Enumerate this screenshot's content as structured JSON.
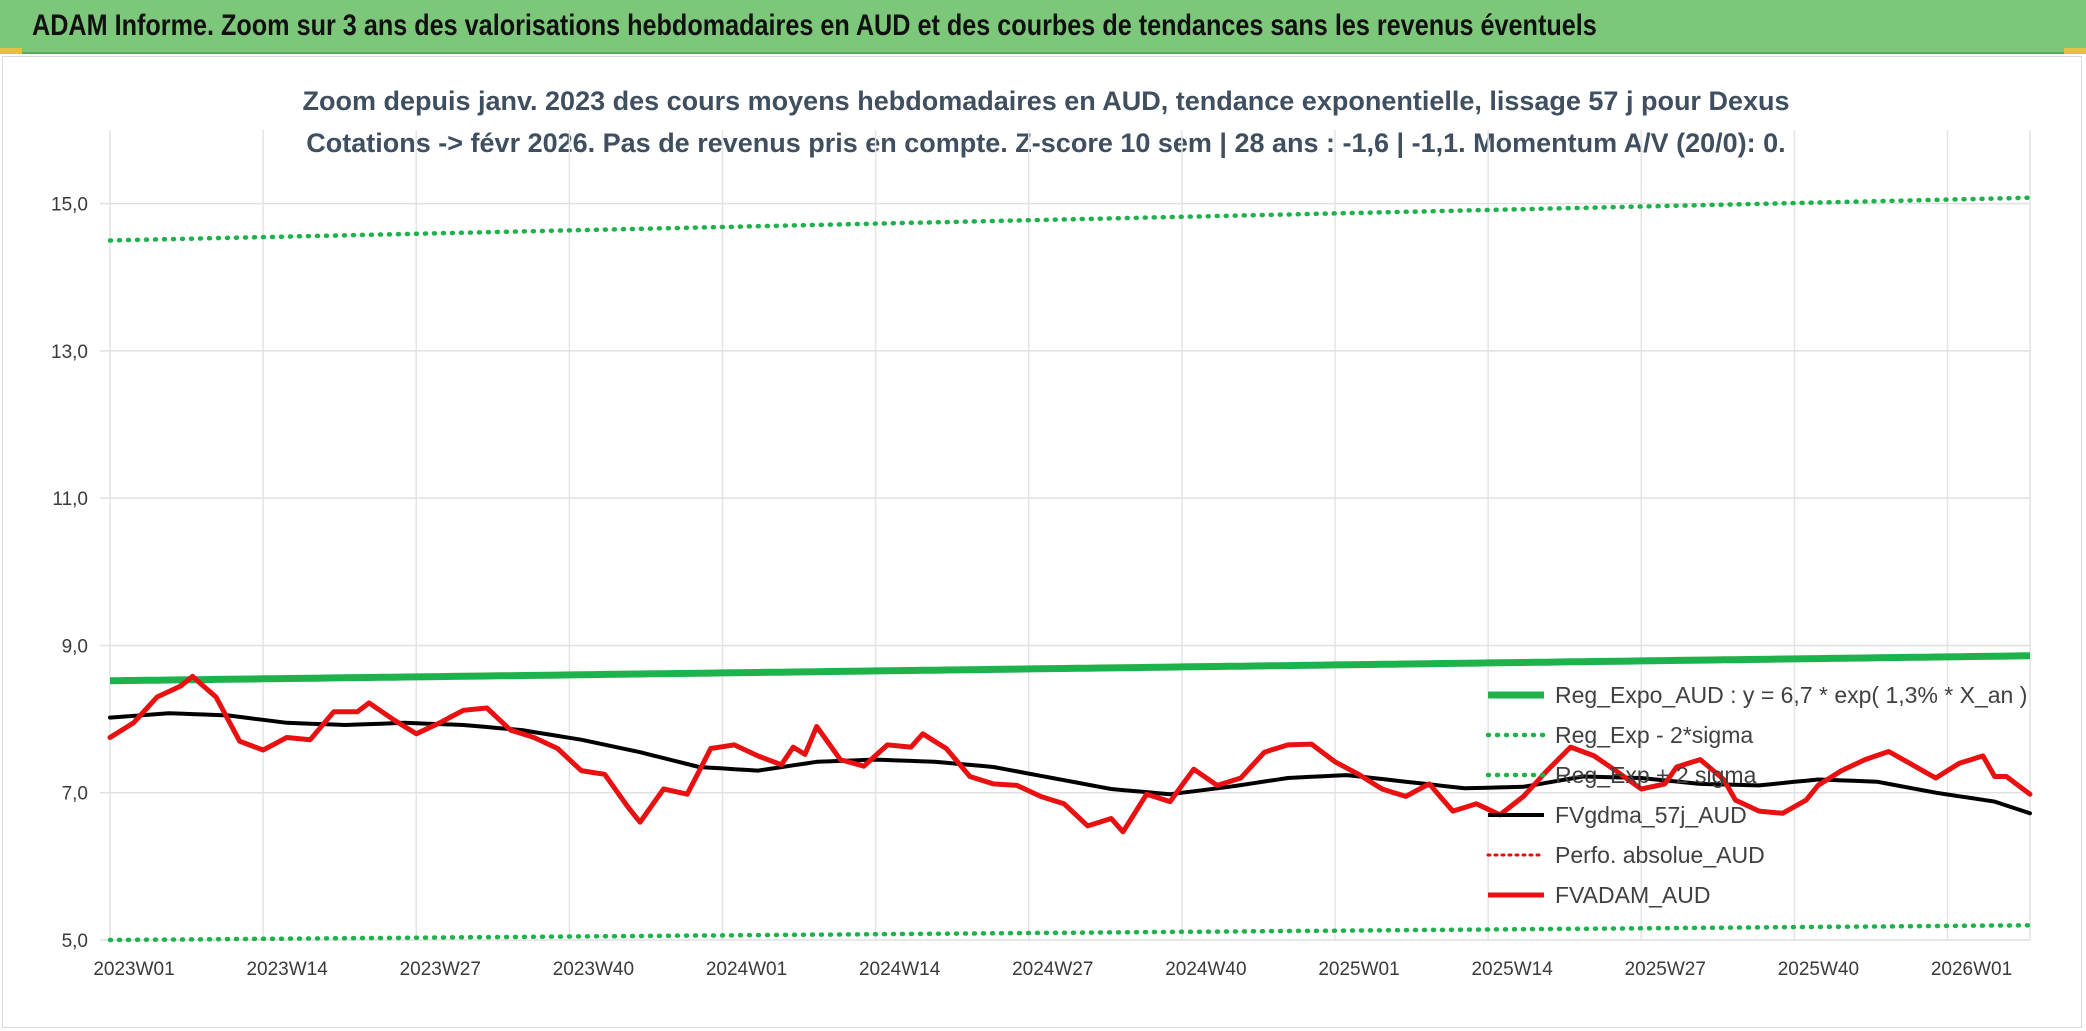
{
  "banner": {
    "title": "ADAM Informe. Zoom sur 3 ans des valorisations hebdomadaires en AUD et des courbes de tendances sans les revenus éventuels"
  },
  "chart_data": {
    "type": "line",
    "title_line1": "Zoom depuis janv. 2023 des cours moyens hebdomadaires en AUD, tendance exponentielle, lissage 57 j pour Dexus",
    "title_line2": "Cotations -> févr 2026. Pas de revenus pris en compte. Z-score 10 sem | 28 ans : -1,6 | -1,1. Momentum A/V (20/0): 0.",
    "x_tick_labels": [
      "2023W01",
      "2023W14",
      "2023W27",
      "2023W40",
      "2024W01",
      "2024W14",
      "2024W27",
      "2024W40",
      "2025W01",
      "2025W14",
      "2025W27",
      "2025W40",
      "2026W01"
    ],
    "x_tick_index": [
      0,
      13,
      26,
      39,
      52,
      65,
      78,
      91,
      104,
      117,
      130,
      143,
      156
    ],
    "x_count": 164,
    "y_ticks": [
      "5,0",
      "7,0",
      "9,0",
      "11,0",
      "13,0",
      "15,0"
    ],
    "y_tick_values": [
      5,
      7,
      9,
      11,
      13,
      15
    ],
    "ylim": [
      5,
      16
    ],
    "grid": true,
    "legend_position": "bottom-right",
    "colors": {
      "reg_expo": "#1db24c",
      "sigma_bands": "#1db24c",
      "fvgdma": "#000000",
      "perfo": "#e01010",
      "fvadam": "#e81010"
    },
    "series": [
      {
        "name": "Reg_Expo_AUD : y = 6,7 * exp( 1,3% *  X_an )",
        "key": "reg_expo",
        "style": "solid-thick",
        "start": 8.52,
        "end": 8.86
      },
      {
        "name": "Reg_Exp - 2*sigma",
        "key": "minus_sigma",
        "style": "dotted",
        "start": 5.0,
        "end": 5.2
      },
      {
        "name": "Reg_Exp + 2 sigma",
        "key": "plus_sigma",
        "style": "dotted",
        "start": 14.5,
        "end": 15.08
      },
      {
        "name": "FVgdma_57j_AUD",
        "key": "fvgdma",
        "style": "solid",
        "keypoints": [
          [
            0,
            8.02
          ],
          [
            5,
            8.08
          ],
          [
            10,
            8.05
          ],
          [
            15,
            7.95
          ],
          [
            20,
            7.92
          ],
          [
            25,
            7.95
          ],
          [
            30,
            7.92
          ],
          [
            35,
            7.85
          ],
          [
            40,
            7.72
          ],
          [
            45,
            7.55
          ],
          [
            50,
            7.35
          ],
          [
            55,
            7.3
          ],
          [
            60,
            7.42
          ],
          [
            65,
            7.45
          ],
          [
            70,
            7.42
          ],
          [
            75,
            7.35
          ],
          [
            80,
            7.2
          ],
          [
            85,
            7.05
          ],
          [
            90,
            6.98
          ],
          [
            95,
            7.08
          ],
          [
            100,
            7.2
          ],
          [
            105,
            7.24
          ],
          [
            110,
            7.15
          ],
          [
            115,
            7.06
          ],
          [
            120,
            7.08
          ],
          [
            125,
            7.22
          ],
          [
            130,
            7.2
          ],
          [
            135,
            7.12
          ],
          [
            140,
            7.1
          ],
          [
            145,
            7.18
          ],
          [
            150,
            7.15
          ],
          [
            155,
            7.0
          ],
          [
            160,
            6.88
          ],
          [
            163,
            6.72
          ]
        ]
      },
      {
        "name": "Perfo. absolue_AUD",
        "key": "perfo",
        "style": "dotted-red"
      },
      {
        "name": "FVADAM_AUD",
        "key": "fvadam",
        "style": "solid-thick",
        "keypoints": [
          [
            0,
            7.75
          ],
          [
            2,
            7.95
          ],
          [
            4,
            8.3
          ],
          [
            6,
            8.45
          ],
          [
            7,
            8.58
          ],
          [
            9,
            8.3
          ],
          [
            11,
            7.7
          ],
          [
            13,
            7.58
          ],
          [
            15,
            7.75
          ],
          [
            17,
            7.72
          ],
          [
            19,
            8.1
          ],
          [
            21,
            8.1
          ],
          [
            22,
            8.22
          ],
          [
            24,
            8.0
          ],
          [
            26,
            7.8
          ],
          [
            28,
            7.95
          ],
          [
            30,
            8.12
          ],
          [
            32,
            8.15
          ],
          [
            34,
            7.85
          ],
          [
            36,
            7.75
          ],
          [
            38,
            7.6
          ],
          [
            40,
            7.3
          ],
          [
            42,
            7.25
          ],
          [
            44,
            6.8
          ],
          [
            45,
            6.6
          ],
          [
            47,
            7.05
          ],
          [
            49,
            6.98
          ],
          [
            51,
            7.6
          ],
          [
            53,
            7.65
          ],
          [
            55,
            7.5
          ],
          [
            57,
            7.38
          ],
          [
            58,
            7.62
          ],
          [
            59,
            7.52
          ],
          [
            60,
            7.9
          ],
          [
            62,
            7.45
          ],
          [
            64,
            7.36
          ],
          [
            66,
            7.65
          ],
          [
            68,
            7.62
          ],
          [
            69,
            7.8
          ],
          [
            71,
            7.6
          ],
          [
            73,
            7.22
          ],
          [
            75,
            7.12
          ],
          [
            77,
            7.1
          ],
          [
            79,
            6.95
          ],
          [
            81,
            6.85
          ],
          [
            83,
            6.55
          ],
          [
            85,
            6.65
          ],
          [
            86,
            6.47
          ],
          [
            88,
            6.98
          ],
          [
            90,
            6.88
          ],
          [
            92,
            7.32
          ],
          [
            94,
            7.1
          ],
          [
            96,
            7.2
          ],
          [
            98,
            7.55
          ],
          [
            100,
            7.65
          ],
          [
            102,
            7.66
          ],
          [
            104,
            7.42
          ],
          [
            106,
            7.25
          ],
          [
            108,
            7.05
          ],
          [
            110,
            6.95
          ],
          [
            112,
            7.12
          ],
          [
            114,
            6.75
          ],
          [
            116,
            6.85
          ],
          [
            118,
            6.7
          ],
          [
            120,
            6.95
          ],
          [
            122,
            7.3
          ],
          [
            124,
            7.62
          ],
          [
            126,
            7.5
          ],
          [
            128,
            7.28
          ],
          [
            130,
            7.05
          ],
          [
            132,
            7.12
          ],
          [
            133,
            7.35
          ],
          [
            135,
            7.45
          ],
          [
            137,
            7.18
          ],
          [
            138,
            6.9
          ],
          [
            140,
            6.75
          ],
          [
            142,
            6.72
          ],
          [
            144,
            6.9
          ],
          [
            145,
            7.1
          ],
          [
            147,
            7.3
          ],
          [
            149,
            7.45
          ],
          [
            151,
            7.56
          ],
          [
            153,
            7.38
          ],
          [
            155,
            7.2
          ],
          [
            157,
            7.4
          ],
          [
            159,
            7.5
          ],
          [
            160,
            7.22
          ],
          [
            161,
            7.22
          ],
          [
            163,
            6.98
          ]
        ]
      }
    ]
  }
}
